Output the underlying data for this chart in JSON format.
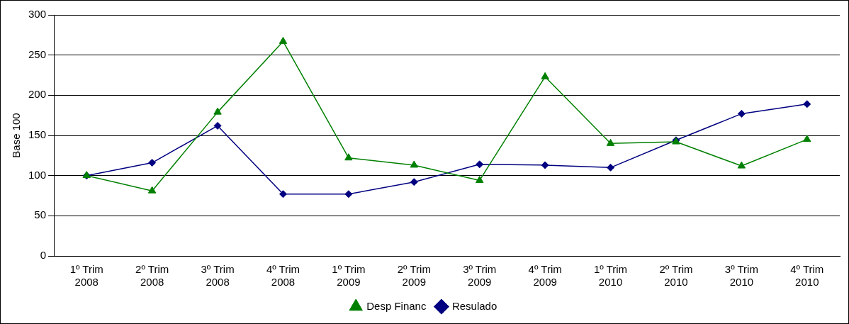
{
  "chart_data": {
    "type": "line",
    "ylabel": "Base 100",
    "categories": [
      "1º Trim 2008",
      "2º Trim 2008",
      "3º Trim 2008",
      "4º Trim 2008",
      "1º Trim 2009",
      "2º Trim 2009",
      "3º Trim 2009",
      "4º Trim 2009",
      "1º Trim 2010",
      "2º Trim 2010",
      "3º Trim 2010",
      "4º Trim 2010"
    ],
    "series": [
      {
        "name": "Resulado",
        "color": "#000080",
        "marker": "diamond",
        "values": [
          100,
          116,
          162,
          77,
          77,
          92,
          114,
          113,
          110,
          144,
          177,
          189
        ]
      },
      {
        "name": "Desp Financ",
        "color": "#008000",
        "marker": "triangle",
        "values": [
          100,
          81,
          179,
          267,
          122,
          113,
          94,
          223,
          140,
          142,
          112,
          145
        ]
      }
    ],
    "ylim": [
      0,
      300
    ],
    "yticks": [
      0,
      50,
      100,
      150,
      200,
      250,
      300
    ],
    "grid": "y",
    "legend": "bottom",
    "line_style": "solid"
  }
}
